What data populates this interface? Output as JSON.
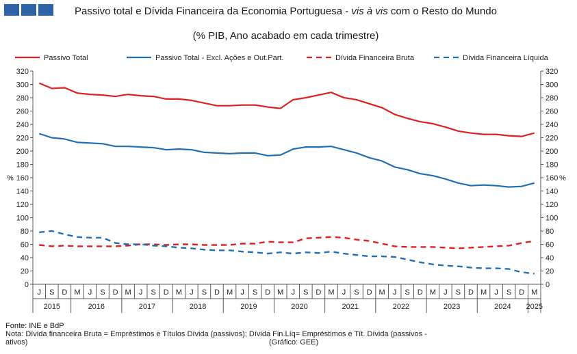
{
  "header": {
    "title_part1": "Passivo total e Dívida Financeira da Economia Portuguesa - ",
    "title_italic": "vis à vis",
    "title_part2": " com o Resto do Mundo",
    "subtitle": "(% PIB, Ano acabado em cada trimestre)"
  },
  "colors": {
    "logo": "#2e63a8"
  },
  "chart_data": {
    "type": "line",
    "title": "Passivo total e Dívida Financeira da Economia Portuguesa - vis à vis com o Resto do Mundo",
    "subtitle": "(% PIB, Ano acabado em cada trimestre)",
    "ylabel": "%",
    "ylim": [
      0,
      320
    ],
    "yticks": [
      0,
      20,
      40,
      60,
      80,
      100,
      120,
      140,
      160,
      180,
      200,
      220,
      240,
      260,
      280,
      300,
      320
    ],
    "legend_position": "top",
    "grid": false,
    "x": [
      "J",
      "S",
      "D",
      "M",
      "J",
      "S",
      "D",
      "M",
      "J",
      "S",
      "D",
      "M",
      "J",
      "S",
      "D",
      "M",
      "J",
      "S",
      "D",
      "M",
      "J",
      "S",
      "D",
      "M",
      "J",
      "S",
      "D",
      "M",
      "J",
      "S",
      "D",
      "M",
      "J",
      "S",
      "D",
      "M",
      "J",
      "S",
      "D",
      "M"
    ],
    "year_labels": [
      {
        "label": "2015",
        "start": 0,
        "count": 3
      },
      {
        "label": "2016",
        "start": 3,
        "count": 4
      },
      {
        "label": "2017",
        "start": 7,
        "count": 4
      },
      {
        "label": "2018",
        "start": 11,
        "count": 4
      },
      {
        "label": "2019",
        "start": 15,
        "count": 4
      },
      {
        "label": "2020",
        "start": 19,
        "count": 4
      },
      {
        "label": "2021",
        "start": 23,
        "count": 4
      },
      {
        "label": "2022",
        "start": 27,
        "count": 4
      },
      {
        "label": "2023",
        "start": 31,
        "count": 4
      },
      {
        "label": "2024",
        "start": 35,
        "count": 4
      },
      {
        "label": "2025",
        "start": 39,
        "count": 1
      }
    ],
    "series": [
      {
        "name": "Passivo Total",
        "color": "#e02020",
        "dash": false,
        "values": [
          302,
          294,
          295,
          287,
          285,
          284,
          282,
          285,
          283,
          282,
          278,
          278,
          276,
          272,
          268,
          268,
          269,
          269,
          266,
          264,
          277,
          280,
          284,
          288,
          280,
          277,
          271,
          265,
          255,
          249,
          244,
          241,
          236,
          230,
          227,
          225,
          225,
          223,
          222,
          227
        ]
      },
      {
        "name": "Passivo Total - Excl. Ações e Out.Part.",
        "color": "#1f6fb4",
        "dash": false,
        "values": [
          226,
          220,
          218,
          213,
          212,
          211,
          207,
          207,
          206,
          205,
          202,
          203,
          202,
          198,
          197,
          196,
          197,
          197,
          193,
          194,
          203,
          206,
          206,
          207,
          202,
          197,
          190,
          185,
          176,
          172,
          166,
          163,
          158,
          152,
          148,
          149,
          148,
          146,
          147,
          152
        ]
      },
      {
        "name": "Dívida Financeira Bruta",
        "color": "#e02020",
        "dash": true,
        "values": [
          59,
          57,
          58,
          57,
          57,
          57,
          57,
          58,
          60,
          60,
          59,
          60,
          60,
          59,
          59,
          59,
          61,
          61,
          64,
          63,
          63,
          69,
          70,
          71,
          70,
          67,
          65,
          61,
          57,
          56,
          56,
          56,
          55,
          54,
          55,
          56,
          57,
          58,
          62,
          65
        ]
      },
      {
        "name": "Dívida Financeira Líquida",
        "color": "#1f6fb4",
        "dash": true,
        "values": [
          78,
          80,
          75,
          71,
          70,
          70,
          62,
          60,
          60,
          58,
          57,
          55,
          54,
          52,
          51,
          51,
          49,
          48,
          46,
          48,
          46,
          48,
          47,
          49,
          46,
          44,
          42,
          42,
          41,
          37,
          33,
          30,
          28,
          27,
          25,
          24,
          24,
          23,
          18,
          16
        ]
      }
    ]
  },
  "notes": {
    "source": "Fonte: INE e BdP",
    "note_line1": "Nota: Dívida financeira Bruta = Empréstimos e Títulos Dívida (passivos); Dívida Fin.Líq= Empréstimos e Tít. Dívida (passivos -",
    "note_line2": "ativos)",
    "graph_credit": "(Gráfico: GEE)"
  }
}
